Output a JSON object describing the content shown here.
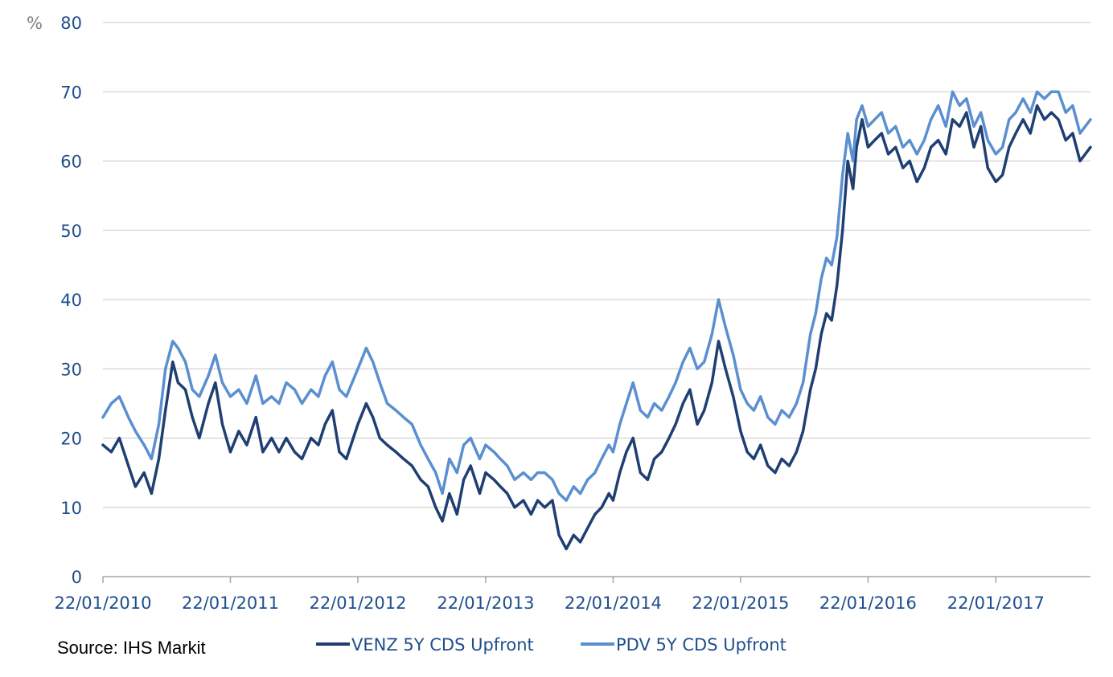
{
  "source": "Source: IHS Markit",
  "chart_data": {
    "type": "line",
    "y_unit": "%",
    "ylim": [
      0,
      80
    ],
    "yticks": [
      0,
      10,
      20,
      30,
      40,
      50,
      60,
      70,
      80
    ],
    "xlim": [
      "2010-01-22",
      "2017-10-20"
    ],
    "xticks": [
      {
        "date": "2010-01-22",
        "label": "22/01/2010"
      },
      {
        "date": "2011-01-22",
        "label": "22/01/2011"
      },
      {
        "date": "2012-01-22",
        "label": "22/01/2012"
      },
      {
        "date": "2013-01-22",
        "label": "22/01/2013"
      },
      {
        "date": "2014-01-22",
        "label": "22/01/2014"
      },
      {
        "date": "2015-01-22",
        "label": "22/01/2015"
      },
      {
        "date": "2016-01-22",
        "label": "22/01/2016"
      },
      {
        "date": "2017-01-22",
        "label": "22/01/2017"
      }
    ],
    "grid": "horizontal",
    "legend_position": "bottom",
    "series": [
      {
        "name": "VENZ 5Y CDS Upfront",
        "color": "#1f3f73",
        "points": [
          [
            "2010-01-22",
            19
          ],
          [
            "2010-02-15",
            18
          ],
          [
            "2010-03-10",
            20
          ],
          [
            "2010-04-05",
            16
          ],
          [
            "2010-04-25",
            13
          ],
          [
            "2010-05-20",
            15
          ],
          [
            "2010-06-10",
            12
          ],
          [
            "2010-07-01",
            17
          ],
          [
            "2010-07-20",
            24
          ],
          [
            "2010-08-10",
            31
          ],
          [
            "2010-08-25",
            28
          ],
          [
            "2010-09-15",
            27
          ],
          [
            "2010-10-05",
            23
          ],
          [
            "2010-10-25",
            20
          ],
          [
            "2010-11-20",
            25
          ],
          [
            "2010-12-10",
            28
          ],
          [
            "2010-12-30",
            22
          ],
          [
            "2011-01-22",
            18
          ],
          [
            "2011-02-15",
            21
          ],
          [
            "2011-03-10",
            19
          ],
          [
            "2011-04-05",
            23
          ],
          [
            "2011-04-25",
            18
          ],
          [
            "2011-05-20",
            20
          ],
          [
            "2011-06-10",
            18
          ],
          [
            "2011-07-01",
            20
          ],
          [
            "2011-07-25",
            18
          ],
          [
            "2011-08-15",
            17
          ],
          [
            "2011-09-10",
            20
          ],
          [
            "2011-10-01",
            19
          ],
          [
            "2011-10-20",
            22
          ],
          [
            "2011-11-10",
            24
          ],
          [
            "2011-11-30",
            18
          ],
          [
            "2011-12-20",
            17
          ],
          [
            "2012-01-22",
            22
          ],
          [
            "2012-02-15",
            25
          ],
          [
            "2012-03-05",
            23
          ],
          [
            "2012-03-25",
            20
          ],
          [
            "2012-04-15",
            19
          ],
          [
            "2012-05-10",
            18
          ],
          [
            "2012-06-01",
            17
          ],
          [
            "2012-06-25",
            16
          ],
          [
            "2012-07-20",
            14
          ],
          [
            "2012-08-10",
            13
          ],
          [
            "2012-09-01",
            10
          ],
          [
            "2012-09-20",
            8
          ],
          [
            "2012-10-10",
            12
          ],
          [
            "2012-11-01",
            9
          ],
          [
            "2012-11-20",
            14
          ],
          [
            "2012-12-10",
            16
          ],
          [
            "2013-01-05",
            12
          ],
          [
            "2013-01-22",
            15
          ],
          [
            "2013-02-15",
            14
          ],
          [
            "2013-03-05",
            13
          ],
          [
            "2013-03-25",
            12
          ],
          [
            "2013-04-15",
            10
          ],
          [
            "2013-05-10",
            11
          ],
          [
            "2013-06-01",
            9
          ],
          [
            "2013-06-20",
            11
          ],
          [
            "2013-07-10",
            10
          ],
          [
            "2013-08-01",
            11
          ],
          [
            "2013-08-20",
            6
          ],
          [
            "2013-09-10",
            4
          ],
          [
            "2013-10-01",
            6
          ],
          [
            "2013-10-20",
            5
          ],
          [
            "2013-11-10",
            7
          ],
          [
            "2013-12-01",
            9
          ],
          [
            "2013-12-20",
            10
          ],
          [
            "2014-01-10",
            12
          ],
          [
            "2014-01-22",
            11
          ],
          [
            "2014-02-10",
            15
          ],
          [
            "2014-03-01",
            18
          ],
          [
            "2014-03-20",
            20
          ],
          [
            "2014-04-10",
            15
          ],
          [
            "2014-05-01",
            14
          ],
          [
            "2014-05-20",
            17
          ],
          [
            "2014-06-10",
            18
          ],
          [
            "2014-07-01",
            20
          ],
          [
            "2014-07-20",
            22
          ],
          [
            "2014-08-10",
            25
          ],
          [
            "2014-08-30",
            27
          ],
          [
            "2014-09-20",
            22
          ],
          [
            "2014-10-10",
            24
          ],
          [
            "2014-11-01",
            28
          ],
          [
            "2014-11-20",
            34
          ],
          [
            "2014-12-10",
            30
          ],
          [
            "2015-01-01",
            26
          ],
          [
            "2015-01-22",
            21
          ],
          [
            "2015-02-10",
            18
          ],
          [
            "2015-03-01",
            17
          ],
          [
            "2015-03-20",
            19
          ],
          [
            "2015-04-10",
            16
          ],
          [
            "2015-05-01",
            15
          ],
          [
            "2015-05-20",
            17
          ],
          [
            "2015-06-10",
            16
          ],
          [
            "2015-07-01",
            18
          ],
          [
            "2015-07-20",
            21
          ],
          [
            "2015-08-10",
            27
          ],
          [
            "2015-08-25",
            30
          ],
          [
            "2015-09-10",
            35
          ],
          [
            "2015-09-25",
            38
          ],
          [
            "2015-10-10",
            37
          ],
          [
            "2015-10-25",
            42
          ],
          [
            "2015-11-10",
            50
          ],
          [
            "2015-11-25",
            60
          ],
          [
            "2015-12-10",
            56
          ],
          [
            "2015-12-20",
            62
          ],
          [
            "2016-01-05",
            66
          ],
          [
            "2016-01-22",
            62
          ],
          [
            "2016-02-10",
            63
          ],
          [
            "2016-03-01",
            64
          ],
          [
            "2016-03-20",
            61
          ],
          [
            "2016-04-10",
            62
          ],
          [
            "2016-05-01",
            59
          ],
          [
            "2016-05-20",
            60
          ],
          [
            "2016-06-10",
            57
          ],
          [
            "2016-07-01",
            59
          ],
          [
            "2016-07-20",
            62
          ],
          [
            "2016-08-10",
            63
          ],
          [
            "2016-09-01",
            61
          ],
          [
            "2016-09-20",
            66
          ],
          [
            "2016-10-10",
            65
          ],
          [
            "2016-10-30",
            67
          ],
          [
            "2016-11-20",
            62
          ],
          [
            "2016-12-10",
            65
          ],
          [
            "2016-12-30",
            59
          ],
          [
            "2017-01-22",
            57
          ],
          [
            "2017-02-10",
            58
          ],
          [
            "2017-03-01",
            62
          ],
          [
            "2017-03-20",
            64
          ],
          [
            "2017-04-10",
            66
          ],
          [
            "2017-05-01",
            64
          ],
          [
            "2017-05-20",
            68
          ],
          [
            "2017-06-10",
            66
          ],
          [
            "2017-06-30",
            67
          ],
          [
            "2017-07-20",
            66
          ],
          [
            "2017-08-10",
            63
          ],
          [
            "2017-08-30",
            64
          ],
          [
            "2017-09-20",
            60
          ],
          [
            "2017-10-20",
            62
          ]
        ]
      },
      {
        "name": "PDV 5Y CDS Upfront",
        "color": "#5a8fd0",
        "points": [
          [
            "2010-01-22",
            23
          ],
          [
            "2010-02-15",
            25
          ],
          [
            "2010-03-10",
            26
          ],
          [
            "2010-04-05",
            23
          ],
          [
            "2010-04-25",
            21
          ],
          [
            "2010-05-20",
            19
          ],
          [
            "2010-06-10",
            17
          ],
          [
            "2010-07-01",
            22
          ],
          [
            "2010-07-20",
            30
          ],
          [
            "2010-08-10",
            34
          ],
          [
            "2010-08-25",
            33
          ],
          [
            "2010-09-15",
            31
          ],
          [
            "2010-10-05",
            27
          ],
          [
            "2010-10-25",
            26
          ],
          [
            "2010-11-20",
            29
          ],
          [
            "2010-12-10",
            32
          ],
          [
            "2010-12-30",
            28
          ],
          [
            "2011-01-22",
            26
          ],
          [
            "2011-02-15",
            27
          ],
          [
            "2011-03-10",
            25
          ],
          [
            "2011-04-05",
            29
          ],
          [
            "2011-04-25",
            25
          ],
          [
            "2011-05-20",
            26
          ],
          [
            "2011-06-10",
            25
          ],
          [
            "2011-07-01",
            28
          ],
          [
            "2011-07-25",
            27
          ],
          [
            "2011-08-15",
            25
          ],
          [
            "2011-09-10",
            27
          ],
          [
            "2011-10-01",
            26
          ],
          [
            "2011-10-20",
            29
          ],
          [
            "2011-11-10",
            31
          ],
          [
            "2011-11-30",
            27
          ],
          [
            "2011-12-20",
            26
          ],
          [
            "2012-01-22",
            30
          ],
          [
            "2012-02-15",
            33
          ],
          [
            "2012-03-05",
            31
          ],
          [
            "2012-03-25",
            28
          ],
          [
            "2012-04-15",
            25
          ],
          [
            "2012-05-10",
            24
          ],
          [
            "2012-06-01",
            23
          ],
          [
            "2012-06-25",
            22
          ],
          [
            "2012-07-20",
            19
          ],
          [
            "2012-08-10",
            17
          ],
          [
            "2012-09-01",
            15
          ],
          [
            "2012-09-20",
            12
          ],
          [
            "2012-10-10",
            17
          ],
          [
            "2012-11-01",
            15
          ],
          [
            "2012-11-20",
            19
          ],
          [
            "2012-12-10",
            20
          ],
          [
            "2013-01-05",
            17
          ],
          [
            "2013-01-22",
            19
          ],
          [
            "2013-02-15",
            18
          ],
          [
            "2013-03-05",
            17
          ],
          [
            "2013-03-25",
            16
          ],
          [
            "2013-04-15",
            14
          ],
          [
            "2013-05-10",
            15
          ],
          [
            "2013-06-01",
            14
          ],
          [
            "2013-06-20",
            15
          ],
          [
            "2013-07-10",
            15
          ],
          [
            "2013-08-01",
            14
          ],
          [
            "2013-08-20",
            12
          ],
          [
            "2013-09-10",
            11
          ],
          [
            "2013-10-01",
            13
          ],
          [
            "2013-10-20",
            12
          ],
          [
            "2013-11-10",
            14
          ],
          [
            "2013-12-01",
            15
          ],
          [
            "2013-12-20",
            17
          ],
          [
            "2014-01-10",
            19
          ],
          [
            "2014-01-22",
            18
          ],
          [
            "2014-02-10",
            22
          ],
          [
            "2014-03-01",
            25
          ],
          [
            "2014-03-20",
            28
          ],
          [
            "2014-04-10",
            24
          ],
          [
            "2014-05-01",
            23
          ],
          [
            "2014-05-20",
            25
          ],
          [
            "2014-06-10",
            24
          ],
          [
            "2014-07-01",
            26
          ],
          [
            "2014-07-20",
            28
          ],
          [
            "2014-08-10",
            31
          ],
          [
            "2014-08-30",
            33
          ],
          [
            "2014-09-20",
            30
          ],
          [
            "2014-10-10",
            31
          ],
          [
            "2014-11-01",
            35
          ],
          [
            "2014-11-20",
            40
          ],
          [
            "2014-12-10",
            36
          ],
          [
            "2015-01-01",
            32
          ],
          [
            "2015-01-22",
            27
          ],
          [
            "2015-02-10",
            25
          ],
          [
            "2015-03-01",
            24
          ],
          [
            "2015-03-20",
            26
          ],
          [
            "2015-04-10",
            23
          ],
          [
            "2015-05-01",
            22
          ],
          [
            "2015-05-20",
            24
          ],
          [
            "2015-06-10",
            23
          ],
          [
            "2015-07-01",
            25
          ],
          [
            "2015-07-20",
            28
          ],
          [
            "2015-08-10",
            35
          ],
          [
            "2015-08-25",
            38
          ],
          [
            "2015-09-10",
            43
          ],
          [
            "2015-09-25",
            46
          ],
          [
            "2015-10-10",
            45
          ],
          [
            "2015-10-25",
            49
          ],
          [
            "2015-11-10",
            58
          ],
          [
            "2015-11-25",
            64
          ],
          [
            "2015-12-10",
            60
          ],
          [
            "2015-12-20",
            66
          ],
          [
            "2016-01-05",
            68
          ],
          [
            "2016-01-22",
            65
          ],
          [
            "2016-02-10",
            66
          ],
          [
            "2016-03-01",
            67
          ],
          [
            "2016-03-20",
            64
          ],
          [
            "2016-04-10",
            65
          ],
          [
            "2016-05-01",
            62
          ],
          [
            "2016-05-20",
            63
          ],
          [
            "2016-06-10",
            61
          ],
          [
            "2016-07-01",
            63
          ],
          [
            "2016-07-20",
            66
          ],
          [
            "2016-08-10",
            68
          ],
          [
            "2016-09-01",
            65
          ],
          [
            "2016-09-20",
            70
          ],
          [
            "2016-10-10",
            68
          ],
          [
            "2016-10-30",
            69
          ],
          [
            "2016-11-20",
            65
          ],
          [
            "2016-12-10",
            67
          ],
          [
            "2016-12-30",
            63
          ],
          [
            "2017-01-22",
            61
          ],
          [
            "2017-02-10",
            62
          ],
          [
            "2017-03-01",
            66
          ],
          [
            "2017-03-20",
            67
          ],
          [
            "2017-04-10",
            69
          ],
          [
            "2017-05-01",
            67
          ],
          [
            "2017-05-20",
            70
          ],
          [
            "2017-06-10",
            69
          ],
          [
            "2017-06-30",
            70
          ],
          [
            "2017-07-20",
            70
          ],
          [
            "2017-08-10",
            67
          ],
          [
            "2017-08-30",
            68
          ],
          [
            "2017-09-20",
            64
          ],
          [
            "2017-10-20",
            66
          ]
        ]
      }
    ]
  }
}
